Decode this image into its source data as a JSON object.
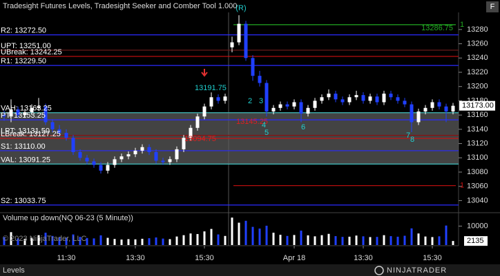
{
  "window": {
    "header": "Tradesight Futures Levels, Tradesight Seeker and Comber Tool 1.000",
    "button": "F",
    "watermark": "© 2023 NinjaTrader, LLC",
    "tab": "Levels",
    "logo": "NINJATRADER"
  },
  "chart_data": {
    "type": "candlestick",
    "ylim": [
      13024,
      13304
    ],
    "yticks": [
      13040,
      13060,
      13080,
      13100,
      13120,
      13140,
      13160,
      13180,
      13200,
      13220,
      13240,
      13260,
      13280
    ],
    "xticks": [
      {
        "value": 9,
        "label": "11:30"
      },
      {
        "value": 19,
        "label": "13:30"
      },
      {
        "value": 29,
        "label": "15:30"
      },
      {
        "value": 42,
        "label": "Apr 18"
      },
      {
        "value": 52,
        "label": "13:30"
      },
      {
        "value": 62,
        "label": "15:30"
      }
    ],
    "up_color": "#ffffff",
    "down_color": "#2040ff",
    "candles": [
      [
        13160,
        13166,
        13152,
        13158
      ],
      [
        13158,
        13182,
        13150,
        13168
      ],
      [
        13168,
        13172,
        13156,
        13160
      ],
      [
        13160,
        13168,
        13156,
        13164
      ],
      [
        13164,
        13175,
        13160,
        13170
      ],
      [
        13170,
        13184,
        13166,
        13172
      ],
      [
        13172,
        13176,
        13146,
        13150
      ],
      [
        13150,
        13154,
        13136,
        13140
      ],
      [
        13140,
        13146,
        13131,
        13135
      ],
      [
        13135,
        13140,
        13124,
        13128
      ],
      [
        13128,
        13132,
        13104,
        13108
      ],
      [
        13108,
        13112,
        13096,
        13100
      ],
      [
        13100,
        13104,
        13091,
        13095
      ],
      [
        13095,
        13099,
        13086,
        13090
      ],
      [
        13090,
        13094,
        13078,
        13082
      ],
      [
        13082,
        13094,
        13078,
        13090
      ],
      [
        13090,
        13102,
        13086,
        13098
      ],
      [
        13098,
        13106,
        13094,
        13102
      ],
      [
        13102,
        13109,
        13098,
        13105
      ],
      [
        13105,
        13114,
        13101,
        13110
      ],
      [
        13110,
        13119,
        13106,
        13115
      ],
      [
        13115,
        13119,
        13104,
        13108
      ],
      [
        13108,
        13112,
        13092,
        13096
      ],
      [
        13096,
        13100,
        13090,
        13094
      ],
      [
        13094,
        13102,
        13090,
        13098
      ],
      [
        13098,
        13116,
        13094,
        13112
      ],
      [
        13112,
        13132,
        13108,
        13128
      ],
      [
        13128,
        13146,
        13124,
        13142
      ],
      [
        13142,
        13162,
        13138,
        13158
      ],
      [
        13158,
        13176,
        13154,
        13172
      ],
      [
        13172,
        13191.75,
        13168,
        13185
      ],
      [
        13185,
        13189,
        13176,
        13180
      ],
      [
        13180,
        13190,
        13176,
        13186
      ],
      [
        13255,
        13270,
        13248,
        13262
      ],
      [
        13262,
        13300,
        13258,
        13288
      ],
      [
        13288,
        13292,
        13236,
        13240
      ],
      [
        13240,
        13244,
        13208,
        13215
      ],
      [
        13215,
        13222,
        13200,
        13205
      ],
      [
        13205,
        13209,
        13158,
        13165
      ],
      [
        13165,
        13174,
        13161,
        13170
      ],
      [
        13170,
        13179,
        13166,
        13175
      ],
      [
        13175,
        13179,
        13168,
        13172
      ],
      [
        13172,
        13182,
        13168,
        13178
      ],
      [
        13178,
        13182,
        13150,
        13162
      ],
      [
        13162,
        13174,
        13158,
        13170
      ],
      [
        13170,
        13184,
        13166,
        13180
      ],
      [
        13180,
        13189,
        13176,
        13185
      ],
      [
        13185,
        13196,
        13181,
        13190
      ],
      [
        13190,
        13194,
        13178,
        13182
      ],
      [
        13182,
        13186,
        13174,
        13178
      ],
      [
        13178,
        13189,
        13174,
        13185
      ],
      [
        13185,
        13194,
        13181,
        13188
      ],
      [
        13188,
        13192,
        13176,
        13180
      ],
      [
        13180,
        13190,
        13176,
        13186
      ],
      [
        13186,
        13190,
        13174,
        13178
      ],
      [
        13178,
        13194,
        13174,
        13190
      ],
      [
        13190,
        13194,
        13181,
        13185
      ],
      [
        13185,
        13189,
        13176,
        13180
      ],
      [
        13180,
        13184,
        13171,
        13175
      ],
      [
        13175,
        13179,
        13136,
        13150
      ],
      [
        13150,
        13169,
        13146,
        13165
      ],
      [
        13165,
        13174,
        13161,
        13170
      ],
      [
        13170,
        13182,
        13166,
        13178
      ],
      [
        13178,
        13182,
        13168,
        13172
      ],
      [
        13172,
        13176,
        13150,
        13165
      ],
      [
        13165,
        13177,
        13161,
        13173
      ]
    ],
    "last_label": "13173.00",
    "levels": [
      {
        "label": "R2: 13272.50",
        "value": 13272.5,
        "color": "#2a2aff"
      },
      {
        "label": "UPT: 13251.00",
        "value": 13251,
        "color": "#6a1a1a"
      },
      {
        "label": "UBreak: 13242.25",
        "value": 13242.25,
        "color": "#d01010"
      },
      {
        "label": "R1: 13229.50",
        "value": 13229.5,
        "color": "#2a2aff"
      },
      {
        "label": "VAH: 13163.25",
        "value": 13163.25,
        "color": "#40c0c0"
      },
      {
        "label": "PT: 13153.25",
        "value": 13153.25,
        "color": "#2a2aff"
      },
      {
        "label": "LPT: 13131.50",
        "value": 13131.5,
        "color": "#8b1010"
      },
      {
        "label": "LBreak: 13127.25",
        "value": 13127.25,
        "color": "#d01010"
      },
      {
        "label": "S1: 13110.00",
        "value": 13110,
        "color": "#2a2aff"
      },
      {
        "label": "VAL: 13091.25",
        "value": 13091.25,
        "color": "#40c0c0"
      },
      {
        "label": "S2: 13033.75",
        "value": 13033.75,
        "color": "#2a2aff"
      }
    ],
    "session_levels": [
      {
        "label": "13286.75",
        "tag": "1",
        "value": 13286.75,
        "color": "#22aa22"
      },
      {
        "tag": "1",
        "value": 13061,
        "color": "#cc1010"
      }
    ],
    "annotations": [
      {
        "text": "(R)",
        "color": "#20d0d0"
      },
      {
        "text": "13191.75",
        "color": "#20d0d0"
      },
      {
        "text": "13145.25",
        "color": "#e02020"
      },
      {
        "text": "13094.75",
        "color": "#e02020"
      },
      {
        "text": "2",
        "color": "#20d0d0"
      },
      {
        "text": "3",
        "color": "#20d0d0"
      },
      {
        "text": "4",
        "color": "#20d0d0"
      },
      {
        "text": "5",
        "color": "#20d0d0"
      },
      {
        "text": "6",
        "color": "#20d0d0"
      },
      {
        "text": "7",
        "color": "#20d0d0"
      },
      {
        "text": "8",
        "color": "#20d0d0"
      }
    ],
    "volume": {
      "title": "Volume up down(NQ 06-23 (5 Minute))",
      "ylim": [
        0,
        16000
      ],
      "yticks": [
        10000
      ],
      "values": [
        4200,
        6800,
        3500,
        3200,
        3800,
        5200,
        6500,
        4800,
        4100,
        3900,
        5600,
        4300,
        3700,
        3500,
        5100,
        3800,
        3200,
        2900,
        3100,
        3000,
        3300,
        3600,
        4000,
        3400,
        3100,
        4500,
        5200,
        6100,
        5800,
        7200,
        8500,
        5600,
        4800,
        14500,
        11800,
        12800,
        9600,
        8700,
        10200,
        6500,
        5400,
        4800,
        5300,
        7600,
        5100,
        4600,
        5200,
        5900,
        4700,
        4300,
        4400,
        5000,
        4600,
        4200,
        4300,
        5200,
        4700,
        4400,
        4900,
        8800,
        6100,
        4500,
        4200,
        4600,
        10300,
        2135
      ]
    }
  }
}
